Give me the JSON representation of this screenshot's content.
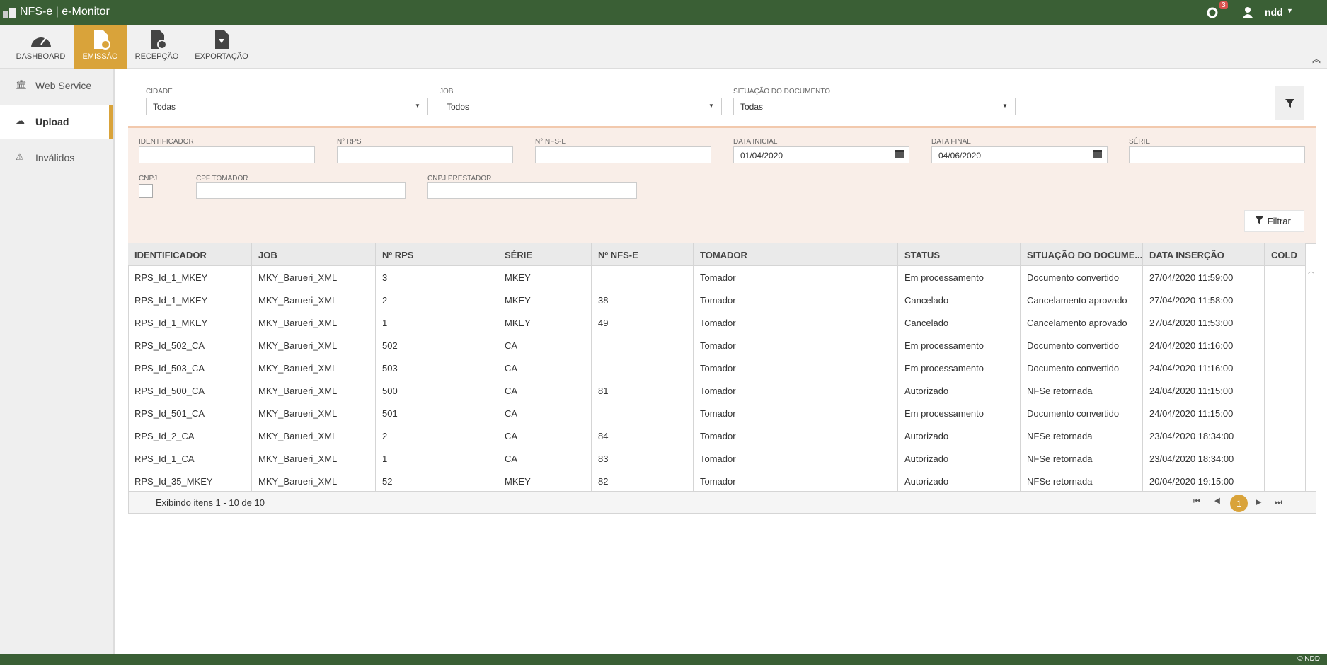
{
  "header": {
    "title": "NFS-e | e-Monitor",
    "badge": "3",
    "user": "ndd"
  },
  "toolbar": [
    "DASHBOARD",
    "EMISSÃO",
    "RECEPÇÃO",
    "EXPORTAÇÃO"
  ],
  "sidebar": [
    "Web Service",
    "Upload",
    "Inválidos"
  ],
  "top_filters": [
    {
      "label": "CIDADE",
      "value": "Todas"
    },
    {
      "label": "JOB",
      "value": "Todos"
    },
    {
      "label": "SITUAÇÃO DO DOCUMENTO",
      "value": "Todas"
    }
  ],
  "fields": [
    {
      "label": "IDENTIFICADOR",
      "value": ""
    },
    {
      "label": "N° RPS",
      "value": ""
    },
    {
      "label": "N° NFS-E",
      "value": ""
    },
    {
      "label": "DATA INICIAL",
      "value": "01/04/2020"
    },
    {
      "label": "DATA FINAL",
      "value": "04/06/2020"
    },
    {
      "label": "SÉRIE",
      "value": ""
    }
  ],
  "fields2": {
    "cnpj": "CNPJ",
    "cpf_tomador": "CPF TOMADOR",
    "cnpj_prestador": "CNPJ PRESTADOR"
  },
  "filter_button": "Filtrar",
  "table": {
    "columns": [
      "IDENTIFICADOR",
      "JOB",
      "Nº RPS",
      "SÉRIE",
      "Nº NFS-E",
      "TOMADOR",
      "STATUS",
      "SITUAÇÃO DO DOCUME...",
      "DATA INSERÇÃO",
      "COLD"
    ],
    "rows": [
      [
        "RPS_Id_1_MKEY",
        "MKY_Barueri_XML",
        "3",
        "MKEY",
        "",
        "Tomador",
        "Em processamento",
        "Documento convertido",
        "27/04/2020 11:59:00",
        ""
      ],
      [
        "RPS_Id_1_MKEY",
        "MKY_Barueri_XML",
        "2",
        "MKEY",
        "38",
        "Tomador",
        "Cancelado",
        "Cancelamento aprovado",
        "27/04/2020 11:58:00",
        ""
      ],
      [
        "RPS_Id_1_MKEY",
        "MKY_Barueri_XML",
        "1",
        "MKEY",
        "49",
        "Tomador",
        "Cancelado",
        "Cancelamento aprovado",
        "27/04/2020 11:53:00",
        ""
      ],
      [
        "RPS_Id_502_CA",
        "MKY_Barueri_XML",
        "502",
        "CA",
        "",
        "Tomador",
        "Em processamento",
        "Documento convertido",
        "24/04/2020 11:16:00",
        ""
      ],
      [
        "RPS_Id_503_CA",
        "MKY_Barueri_XML",
        "503",
        "CA",
        "",
        "Tomador",
        "Em processamento",
        "Documento convertido",
        "24/04/2020 11:16:00",
        ""
      ],
      [
        "RPS_Id_500_CA",
        "MKY_Barueri_XML",
        "500",
        "CA",
        "81",
        "Tomador",
        "Autorizado",
        "NFSe retornada",
        "24/04/2020 11:15:00",
        ""
      ],
      [
        "RPS_Id_501_CA",
        "MKY_Barueri_XML",
        "501",
        "CA",
        "",
        "Tomador",
        "Em processamento",
        "Documento convertido",
        "24/04/2020 11:15:00",
        ""
      ],
      [
        "RPS_Id_2_CA",
        "MKY_Barueri_XML",
        "2",
        "CA",
        "84",
        "Tomador",
        "Autorizado",
        "NFSe retornada",
        "23/04/2020 18:34:00",
        ""
      ],
      [
        "RPS_Id_1_CA",
        "MKY_Barueri_XML",
        "1",
        "CA",
        "83",
        "Tomador",
        "Autorizado",
        "NFSe retornada",
        "23/04/2020 18:34:00",
        ""
      ],
      [
        "RPS_Id_35_MKEY",
        "MKY_Barueri_XML",
        "52",
        "MKEY",
        "82",
        "Tomador",
        "Autorizado",
        "NFSe retornada",
        "20/04/2020 19:15:00",
        ""
      ]
    ]
  },
  "footer": {
    "info": "Exibindo itens 1 - 10 de 10",
    "page": "1"
  },
  "copyright": "© NDD"
}
